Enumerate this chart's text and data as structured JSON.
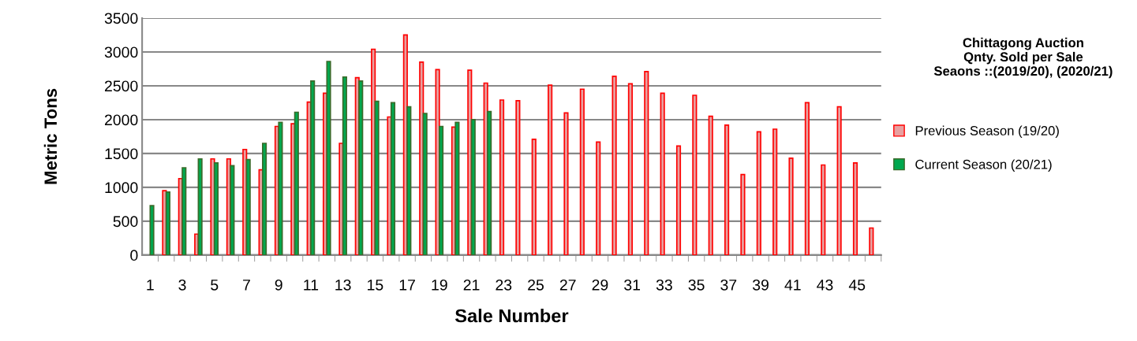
{
  "chart_data": {
    "type": "bar",
    "title": "Chittagong Auction\nQnty. Sold per Sale\nSeaons ::(2019/20), (2020/21)",
    "xlabel": "Sale Number",
    "ylabel": "Metric Tons",
    "categories": [
      "1",
      null,
      "3",
      null,
      "5",
      null,
      "7",
      null,
      "9",
      null,
      "11",
      null,
      "13",
      null,
      "15",
      null,
      "17",
      null,
      "19",
      null,
      "21",
      null,
      "23",
      null,
      "25",
      null,
      "27",
      null,
      "29",
      null,
      "31",
      null,
      "33",
      null,
      "35",
      null,
      "37",
      null,
      "39",
      null,
      "41",
      null,
      "43",
      null,
      "45",
      null
    ],
    "series": [
      {
        "name": "Previous Season (19/20)",
        "color": "#e8a0a0",
        "values": [
          null,
          950,
          1130,
          310,
          1420,
          1420,
          1560,
          1260,
          1900,
          1940,
          2260,
          2390,
          1650,
          2620,
          3040,
          2040,
          3250,
          2850,
          2740,
          1890,
          2730,
          2540,
          2290,
          2280,
          1710,
          2510,
          2100,
          2450,
          1670,
          2640,
          2530,
          2710,
          2390,
          1610,
          2360,
          2050,
          1920,
          1190,
          1820,
          1860,
          1430,
          2250,
          1330,
          2190,
          1360,
          400
        ]
      },
      {
        "name": "Current Season (20/21)",
        "color": "#00a84f",
        "values": [
          730,
          930,
          1290,
          1420,
          1360,
          1320,
          1410,
          1650,
          1960,
          2110,
          2570,
          2860,
          2630,
          2570,
          2270,
          2250,
          2190,
          2090,
          1900,
          1960,
          2000,
          2120,
          null,
          null,
          null,
          null,
          null,
          null,
          null,
          null,
          null,
          null,
          null,
          null,
          null,
          null,
          null,
          null,
          null,
          null,
          null,
          null,
          null,
          null,
          null,
          null
        ]
      }
    ],
    "ylim": [
      0,
      3500
    ],
    "yticks": [
      0,
      500,
      1000,
      1500,
      2000,
      2500,
      3000,
      3500
    ],
    "grid": "y",
    "legend": "right"
  }
}
